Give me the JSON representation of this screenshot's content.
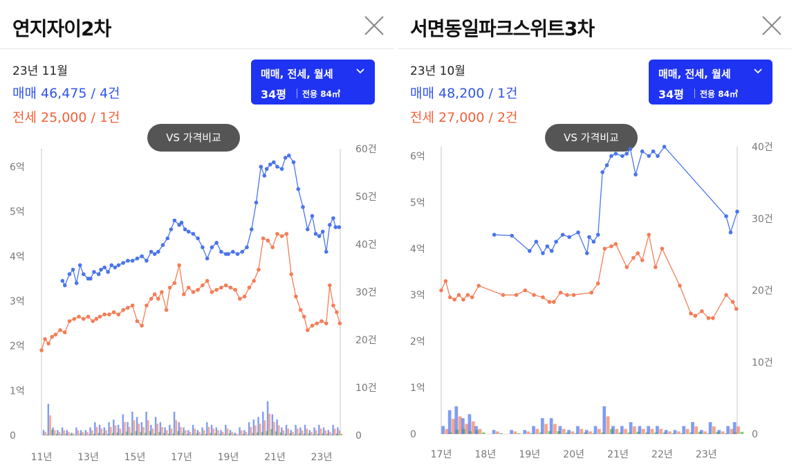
{
  "colors": {
    "sale": "#4a74ec",
    "jeonse": "#f47d57",
    "wolse": "#3cbf3c",
    "button": "#1f33f2",
    "vs_button": "#555555"
  },
  "filter_chevron_icon": "chevron-down-icon",
  "close_icon": "close-icon",
  "panels": [
    {
      "title": "연지자이2차",
      "date": "23년 11월",
      "sale_text": "매매 46,475 / 4건",
      "jeonse_text": "전세 25,000 / 1건",
      "filter_types": "매매, 전세, 월세",
      "filter_pyeong": "34평",
      "filter_area": "전용 84㎡",
      "vs_label": "VS 가격비교"
    },
    {
      "title": "서면동일파크스위트3차",
      "date": "23년 10월",
      "sale_text": "매매 48,200 / 1건",
      "jeonse_text": "전세 27,000 / 2건",
      "filter_types": "매매, 전세, 월세",
      "filter_pyeong": "34평",
      "filter_area": "전용 84㎡",
      "vs_label": "VS 가격비교"
    }
  ],
  "chart_data": [
    {
      "type": "line",
      "title": "연지자이2차",
      "xlabel": "",
      "ylabel": "",
      "x_ticks": [
        "11년",
        "13년",
        "15년",
        "17년",
        "19년",
        "21년",
        "23년"
      ],
      "x_range": [
        2011,
        2023.8
      ],
      "price_ticks": [
        "0",
        "1억",
        "2억",
        "3억",
        "4억",
        "5억",
        "6억"
      ],
      "ylim_price": [
        0,
        6.4
      ],
      "count_ticks": [
        "0",
        "10건",
        "20건",
        "30건",
        "40건",
        "50건",
        "60건"
      ],
      "ylim_count": [
        0,
        60
      ],
      "grid": false,
      "series": [
        {
          "name": "매매",
          "axis": "price",
          "x": [
            2011.9,
            2012.0,
            2012.2,
            2012.35,
            2012.5,
            2012.65,
            2012.8,
            2013.0,
            2013.1,
            2013.25,
            2013.45,
            2013.55,
            2013.7,
            2013.85,
            2014.0,
            2014.15,
            2014.3,
            2014.5,
            2014.7,
            2014.9,
            2015.1,
            2015.3,
            2015.5,
            2015.7,
            2015.85,
            2016.0,
            2016.2,
            2016.4,
            2016.55,
            2016.7,
            2016.9,
            2017.0,
            2017.15,
            2017.3,
            2017.5,
            2017.7,
            2017.9,
            2018.1,
            2018.3,
            2018.5,
            2018.7,
            2018.9,
            2019.0,
            2019.2,
            2019.4,
            2019.6,
            2019.8,
            2020.0,
            2020.2,
            2020.4,
            2020.55,
            2020.65,
            2020.8,
            2020.95,
            2021.1,
            2021.3,
            2021.45,
            2021.6,
            2021.8,
            2022.0,
            2022.2,
            2022.4,
            2022.6,
            2022.75,
            2022.9,
            2023.05,
            2023.2,
            2023.35,
            2023.5,
            2023.6,
            2023.75
          ],
          "y": [
            3.45,
            3.35,
            3.6,
            3.7,
            3.4,
            3.8,
            3.6,
            3.5,
            3.5,
            3.65,
            3.6,
            3.7,
            3.75,
            3.65,
            3.8,
            3.75,
            3.8,
            3.85,
            3.9,
            3.9,
            3.95,
            4.0,
            3.9,
            4.1,
            4.05,
            4.1,
            4.25,
            4.4,
            4.6,
            4.8,
            4.7,
            4.75,
            4.6,
            4.55,
            4.5,
            4.4,
            4.2,
            3.95,
            4.2,
            4.3,
            4.1,
            4.05,
            4.05,
            4.1,
            4.05,
            4.1,
            4.2,
            4.6,
            5.2,
            6.0,
            5.8,
            5.95,
            6.05,
            6.1,
            6.0,
            5.95,
            6.2,
            6.25,
            6.1,
            5.5,
            5.1,
            4.6,
            4.9,
            4.5,
            4.45,
            4.55,
            4.1,
            4.7,
            4.85,
            4.65,
            4.65
          ]
        },
        {
          "name": "전세",
          "axis": "price",
          "x": [
            2011.0,
            2011.15,
            2011.3,
            2011.45,
            2011.6,
            2011.8,
            2012.0,
            2012.2,
            2012.4,
            2012.6,
            2012.8,
            2013.0,
            2013.2,
            2013.35,
            2013.5,
            2013.7,
            2013.9,
            2014.1,
            2014.3,
            2014.5,
            2014.7,
            2014.9,
            2015.1,
            2015.3,
            2015.5,
            2015.7,
            2015.85,
            2016.0,
            2016.15,
            2016.35,
            2016.5,
            2016.7,
            2016.9,
            2017.1,
            2017.3,
            2017.5,
            2017.7,
            2017.9,
            2018.1,
            2018.3,
            2018.5,
            2018.7,
            2018.9,
            2019.1,
            2019.3,
            2019.5,
            2019.7,
            2019.9,
            2020.1,
            2020.3,
            2020.5,
            2020.7,
            2020.9,
            2021.1,
            2021.3,
            2021.5,
            2021.7,
            2021.9,
            2022.1,
            2022.25,
            2022.4,
            2022.6,
            2022.8,
            2023.0,
            2023.2,
            2023.35,
            2023.5,
            2023.65,
            2023.78
          ],
          "y": [
            1.9,
            2.15,
            2.05,
            2.2,
            2.25,
            2.35,
            2.3,
            2.55,
            2.6,
            2.65,
            2.6,
            2.65,
            2.55,
            2.6,
            2.65,
            2.7,
            2.7,
            2.75,
            2.7,
            2.8,
            2.85,
            2.9,
            2.55,
            2.45,
            2.9,
            3.05,
            3.15,
            3.05,
            3.2,
            2.8,
            3.3,
            3.4,
            3.8,
            3.15,
            3.3,
            3.2,
            3.25,
            3.35,
            3.45,
            3.2,
            3.25,
            3.3,
            3.35,
            3.3,
            3.25,
            3.05,
            3.1,
            3.3,
            3.45,
            3.7,
            4.4,
            4.35,
            4.2,
            4.5,
            4.45,
            4.5,
            3.6,
            3.1,
            2.8,
            2.65,
            2.35,
            2.45,
            2.5,
            2.55,
            2.5,
            3.35,
            2.9,
            2.75,
            2.5
          ]
        },
        {
          "name": "거래량",
          "axis": "count",
          "x": [
            2011.1,
            2011.3,
            2011.5,
            2011.7,
            2011.9,
            2012.1,
            2012.3,
            2012.5,
            2012.7,
            2012.9,
            2013.1,
            2013.3,
            2013.5,
            2013.7,
            2013.9,
            2014.1,
            2014.3,
            2014.5,
            2014.7,
            2014.9,
            2015.1,
            2015.3,
            2015.5,
            2015.7,
            2015.9,
            2016.1,
            2016.3,
            2016.5,
            2016.7,
            2016.9,
            2017.1,
            2017.3,
            2017.5,
            2017.7,
            2017.9,
            2018.1,
            2018.3,
            2018.5,
            2018.7,
            2018.9,
            2019.1,
            2019.3,
            2019.5,
            2019.7,
            2019.9,
            2020.1,
            2020.3,
            2020.5,
            2020.7,
            2020.9,
            2021.1,
            2021.3,
            2021.5,
            2021.7,
            2021.9,
            2022.1,
            2022.3,
            2022.5,
            2022.7,
            2022.9,
            2023.1,
            2023.3,
            2023.5,
            2023.7
          ],
          "values": [
            2,
            12,
            3,
            2,
            3,
            2,
            1,
            3,
            2,
            2,
            3,
            5,
            4,
            3,
            5,
            6,
            4,
            8,
            5,
            9,
            7,
            5,
            9,
            4,
            7,
            5,
            3,
            4,
            9,
            5,
            3,
            2,
            4,
            2,
            3,
            5,
            4,
            3,
            2,
            4,
            2,
            1,
            3,
            2,
            5,
            6,
            7,
            9,
            13,
            8,
            6,
            3,
            4,
            2,
            4,
            3,
            4,
            2,
            3,
            4,
            3,
            2,
            4,
            3
          ]
        }
      ]
    },
    {
      "type": "line",
      "title": "서면동일파크스위트3차",
      "xlabel": "",
      "ylabel": "",
      "x_ticks": [
        "17년",
        "18년",
        "19년",
        "20년",
        "21년",
        "22년",
        "23년"
      ],
      "x_range": [
        2017,
        2023.7
      ],
      "price_ticks": [
        "0",
        "1억",
        "2억",
        "3억",
        "4억",
        "5억",
        "6억"
      ],
      "ylim_price": [
        0,
        6.2
      ],
      "count_ticks": [
        "0",
        "10건",
        "20건",
        "30건",
        "40건"
      ],
      "ylim_count": [
        0,
        40
      ],
      "grid": false,
      "series": [
        {
          "name": "매매",
          "axis": "price",
          "x": [
            2018.2,
            2018.6,
            2019.0,
            2019.15,
            2019.3,
            2019.4,
            2019.5,
            2019.6,
            2019.75,
            2019.9,
            2020.1,
            2020.3,
            2020.35,
            2020.45,
            2020.55,
            2020.65,
            2020.75,
            2020.85,
            2020.95,
            2021.1,
            2021.2,
            2021.28,
            2021.4,
            2021.55,
            2021.7,
            2021.8,
            2021.9,
            2022.05,
            2023.45,
            2023.55,
            2023.7
          ],
          "y": [
            4.3,
            4.28,
            3.95,
            4.15,
            3.9,
            4.05,
            3.95,
            4.15,
            4.3,
            4.25,
            4.35,
            3.9,
            4.25,
            4.15,
            4.3,
            5.65,
            5.8,
            6.0,
            6.05,
            6.0,
            6.05,
            6.15,
            5.6,
            6.1,
            6.0,
            6.1,
            6.0,
            6.2,
            4.7,
            4.35,
            4.8
          ]
        },
        {
          "name": "전세",
          "axis": "price",
          "x": [
            2017.0,
            2017.1,
            2017.2,
            2017.3,
            2017.4,
            2017.5,
            2017.6,
            2017.7,
            2017.85,
            2018.4,
            2018.7,
            2018.9,
            2019.1,
            2019.3,
            2019.45,
            2019.55,
            2019.7,
            2019.85,
            2020.0,
            2020.4,
            2020.55,
            2020.7,
            2020.85,
            2020.95,
            2021.2,
            2021.35,
            2021.45,
            2021.55,
            2021.7,
            2021.85,
            2022.0,
            2022.4,
            2022.65,
            2022.75,
            2022.9,
            2023.05,
            2023.15,
            2023.45,
            2023.6,
            2023.68
          ],
          "y": [
            3.1,
            3.3,
            2.95,
            2.9,
            3.0,
            2.9,
            3.0,
            2.95,
            3.2,
            3.0,
            3.0,
            3.1,
            3.0,
            2.95,
            2.85,
            2.85,
            3.05,
            3.0,
            3.0,
            3.05,
            3.25,
            4.0,
            4.05,
            4.1,
            3.6,
            3.8,
            3.9,
            3.75,
            4.3,
            3.6,
            4.0,
            3.2,
            2.6,
            2.55,
            2.65,
            2.5,
            2.5,
            3.0,
            2.85,
            2.7
          ]
        },
        {
          "name": "거래량",
          "axis": "count",
          "x": [
            2017.05,
            2017.2,
            2017.35,
            2017.5,
            2017.65,
            2017.8,
            2018.2,
            2018.6,
            2018.9,
            2019.1,
            2019.3,
            2019.5,
            2019.7,
            2019.9,
            2020.1,
            2020.3,
            2020.5,
            2020.7,
            2020.9,
            2021.1,
            2021.3,
            2021.5,
            2021.7,
            2021.9,
            2022.1,
            2022.3,
            2022.5,
            2022.7,
            2022.9,
            2023.1,
            2023.3,
            2023.5,
            2023.65
          ],
          "values": [
            2,
            6,
            7,
            4,
            5,
            2,
            1,
            1,
            1,
            2,
            4,
            4,
            2,
            1,
            2,
            1,
            2,
            7,
            2,
            2,
            3,
            2,
            2,
            2,
            1,
            1,
            2,
            3,
            1,
            3,
            1,
            2,
            3
          ]
        }
      ]
    }
  ]
}
